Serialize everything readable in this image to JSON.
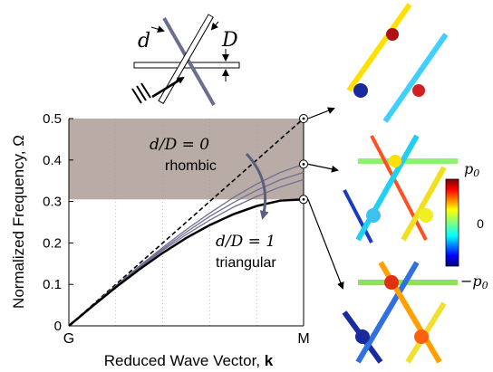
{
  "chart_data": {
    "type": "line",
    "xlabel": "Reduced Wave Vector, ",
    "xlabel_bold": "k",
    "ylabel": "Normalized Frequency, Ω",
    "xticks": [
      "G",
      "M"
    ],
    "yticks": [
      "0",
      "0.1",
      "0.2",
      "0.3",
      "0.4",
      "0.5"
    ],
    "ylim": [
      0,
      0.5
    ],
    "xlim": [
      0,
      1
    ],
    "bandgap_region": [
      0.305,
      0.5
    ],
    "x": [
      0,
      0.1,
      0.2,
      0.3,
      0.4,
      0.5,
      0.6,
      0.7,
      0.8,
      0.9,
      1.0
    ],
    "series": [
      {
        "values": [
          0,
          0.05,
          0.1,
          0.15,
          0.2,
          0.25,
          0.3,
          0.35,
          0.4,
          0.45,
          0.5
        ],
        "style": "dashed",
        "color": "#000000"
      },
      {
        "values": [
          0,
          0.049,
          0.097,
          0.144,
          0.189,
          0.232,
          0.272,
          0.309,
          0.342,
          0.37,
          0.39
        ],
        "color": "#6f6f92"
      },
      {
        "values": [
          0,
          0.049,
          0.096,
          0.142,
          0.185,
          0.226,
          0.264,
          0.297,
          0.327,
          0.352,
          0.37
        ],
        "color": "#6f6f92"
      },
      {
        "values": [
          0,
          0.048,
          0.095,
          0.14,
          0.182,
          0.22,
          0.255,
          0.286,
          0.312,
          0.335,
          0.353
        ],
        "color": "#6f6f92"
      },
      {
        "values": [
          0,
          0.047,
          0.093,
          0.136,
          0.176,
          0.212,
          0.243,
          0.269,
          0.289,
          0.302,
          0.305
        ],
        "color": "#000000",
        "bold": true
      }
    ],
    "annotations": {
      "top_label": "d/D = 0",
      "top_sub": "rhombic",
      "bottom_label": "d/D = 1",
      "bottom_sub": "triangular"
    },
    "marker_values": [
      0.5,
      0.39,
      0.305
    ]
  },
  "inset": {
    "label_d": "d",
    "label_D": "D"
  },
  "colorbar": {
    "top": "p",
    "top_sub": "0",
    "mid": "0",
    "bottom": "−p",
    "bottom_sub": "0"
  },
  "colors": {
    "bandgap": "#b9aca6",
    "arrow": "#5a5f80",
    "inset_bar": "#6a6e91"
  }
}
